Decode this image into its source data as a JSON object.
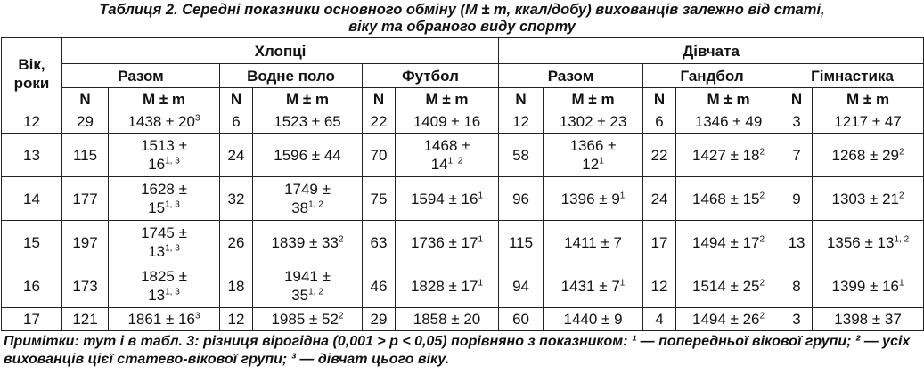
{
  "title": [
    "Таблиця 2. Середні показники основного обміну (M ± m, ккал/добу) вихованців залежно від статі,",
    "віку та обраного виду спорту"
  ],
  "header": {
    "age": "Вік, роки",
    "groups": [
      {
        "name": "Хлопці",
        "subgroups": [
          "Разом",
          "Водне поло",
          "Футбол"
        ]
      },
      {
        "name": "Дівчата",
        "subgroups": [
          "Разом",
          "Гандбол",
          "Гімнастика"
        ]
      }
    ],
    "n": "N",
    "mm": "M ± m"
  },
  "rows": [
    [
      12,
      29,
      {
        "text": "1438 ± 20",
        "sup": "3"
      },
      6,
      "1523 ± 65",
      22,
      "1409 ± 16",
      12,
      "1302 ± 23",
      6,
      "1346 ± 49",
      3,
      "1217 ± 47"
    ],
    [
      13,
      115,
      {
        "text": "1513 ± 16",
        "sup": "1, 3"
      },
      24,
      "1596 ± 44",
      70,
      {
        "text": "1468 ± 14",
        "sup": "1, 2"
      },
      58,
      {
        "text": "1366 ± 12",
        "sup": "1"
      },
      22,
      {
        "text": "1427 ± 18",
        "sup": "2"
      },
      7,
      {
        "text": "1268 ± 29",
        "sup": "2"
      }
    ],
    [
      14,
      177,
      {
        "text": "1628 ± 15",
        "sup": "1, 3"
      },
      32,
      {
        "text": "1749 ± 38",
        "sup": "1, 2"
      },
      75,
      {
        "text": "1594 ± 16",
        "sup": "1"
      },
      96,
      {
        "text": "1396 ± 9",
        "sup": "1"
      },
      24,
      {
        "text": "1468 ± 15",
        "sup": "2"
      },
      9,
      {
        "text": "1303 ± 21",
        "sup": "2"
      }
    ],
    [
      15,
      197,
      {
        "text": "1745 ± 13",
        "sup": "1, 3"
      },
      26,
      {
        "text": "1839 ± 33",
        "sup": "2"
      },
      63,
      {
        "text": "1736 ± 17",
        "sup": "1"
      },
      115,
      "1411 ± 7",
      17,
      {
        "text": "1494 ± 17",
        "sup": "2"
      },
      13,
      {
        "text": "1356 ± 13",
        "sup": "1, 2"
      }
    ],
    [
      16,
      173,
      {
        "text": "1825 ± 13",
        "sup": "1, 3"
      },
      18,
      {
        "text": "1941 ± 35",
        "sup": "1, 2"
      },
      46,
      {
        "text": "1828 ± 17",
        "sup": "1"
      },
      94,
      {
        "text": "1431 ± 7",
        "sup": "1"
      },
      12,
      {
        "text": "1514 ± 25",
        "sup": "2"
      },
      8,
      {
        "text": "1399 ± 16",
        "sup": "1"
      }
    ],
    [
      17,
      121,
      {
        "text": "1861 ± 16",
        "sup": "3"
      },
      12,
      {
        "text": "1985 ± 52",
        "sup": "2"
      },
      29,
      "1858 ± 20",
      60,
      "1440 ± 9",
      4,
      {
        "text": "1494 ± 26",
        "sup": "2"
      },
      3,
      "1398 ± 37"
    ]
  ],
  "notes": "Примітки: тут і в табл. 3: різниця вірогідна (0,001 > p < 0,05) порівняно з показником: ¹ — попередньої вікової групи; ² — усіх вихованців цієї статево-вікової групи; ³ — дівчат цього віку."
}
